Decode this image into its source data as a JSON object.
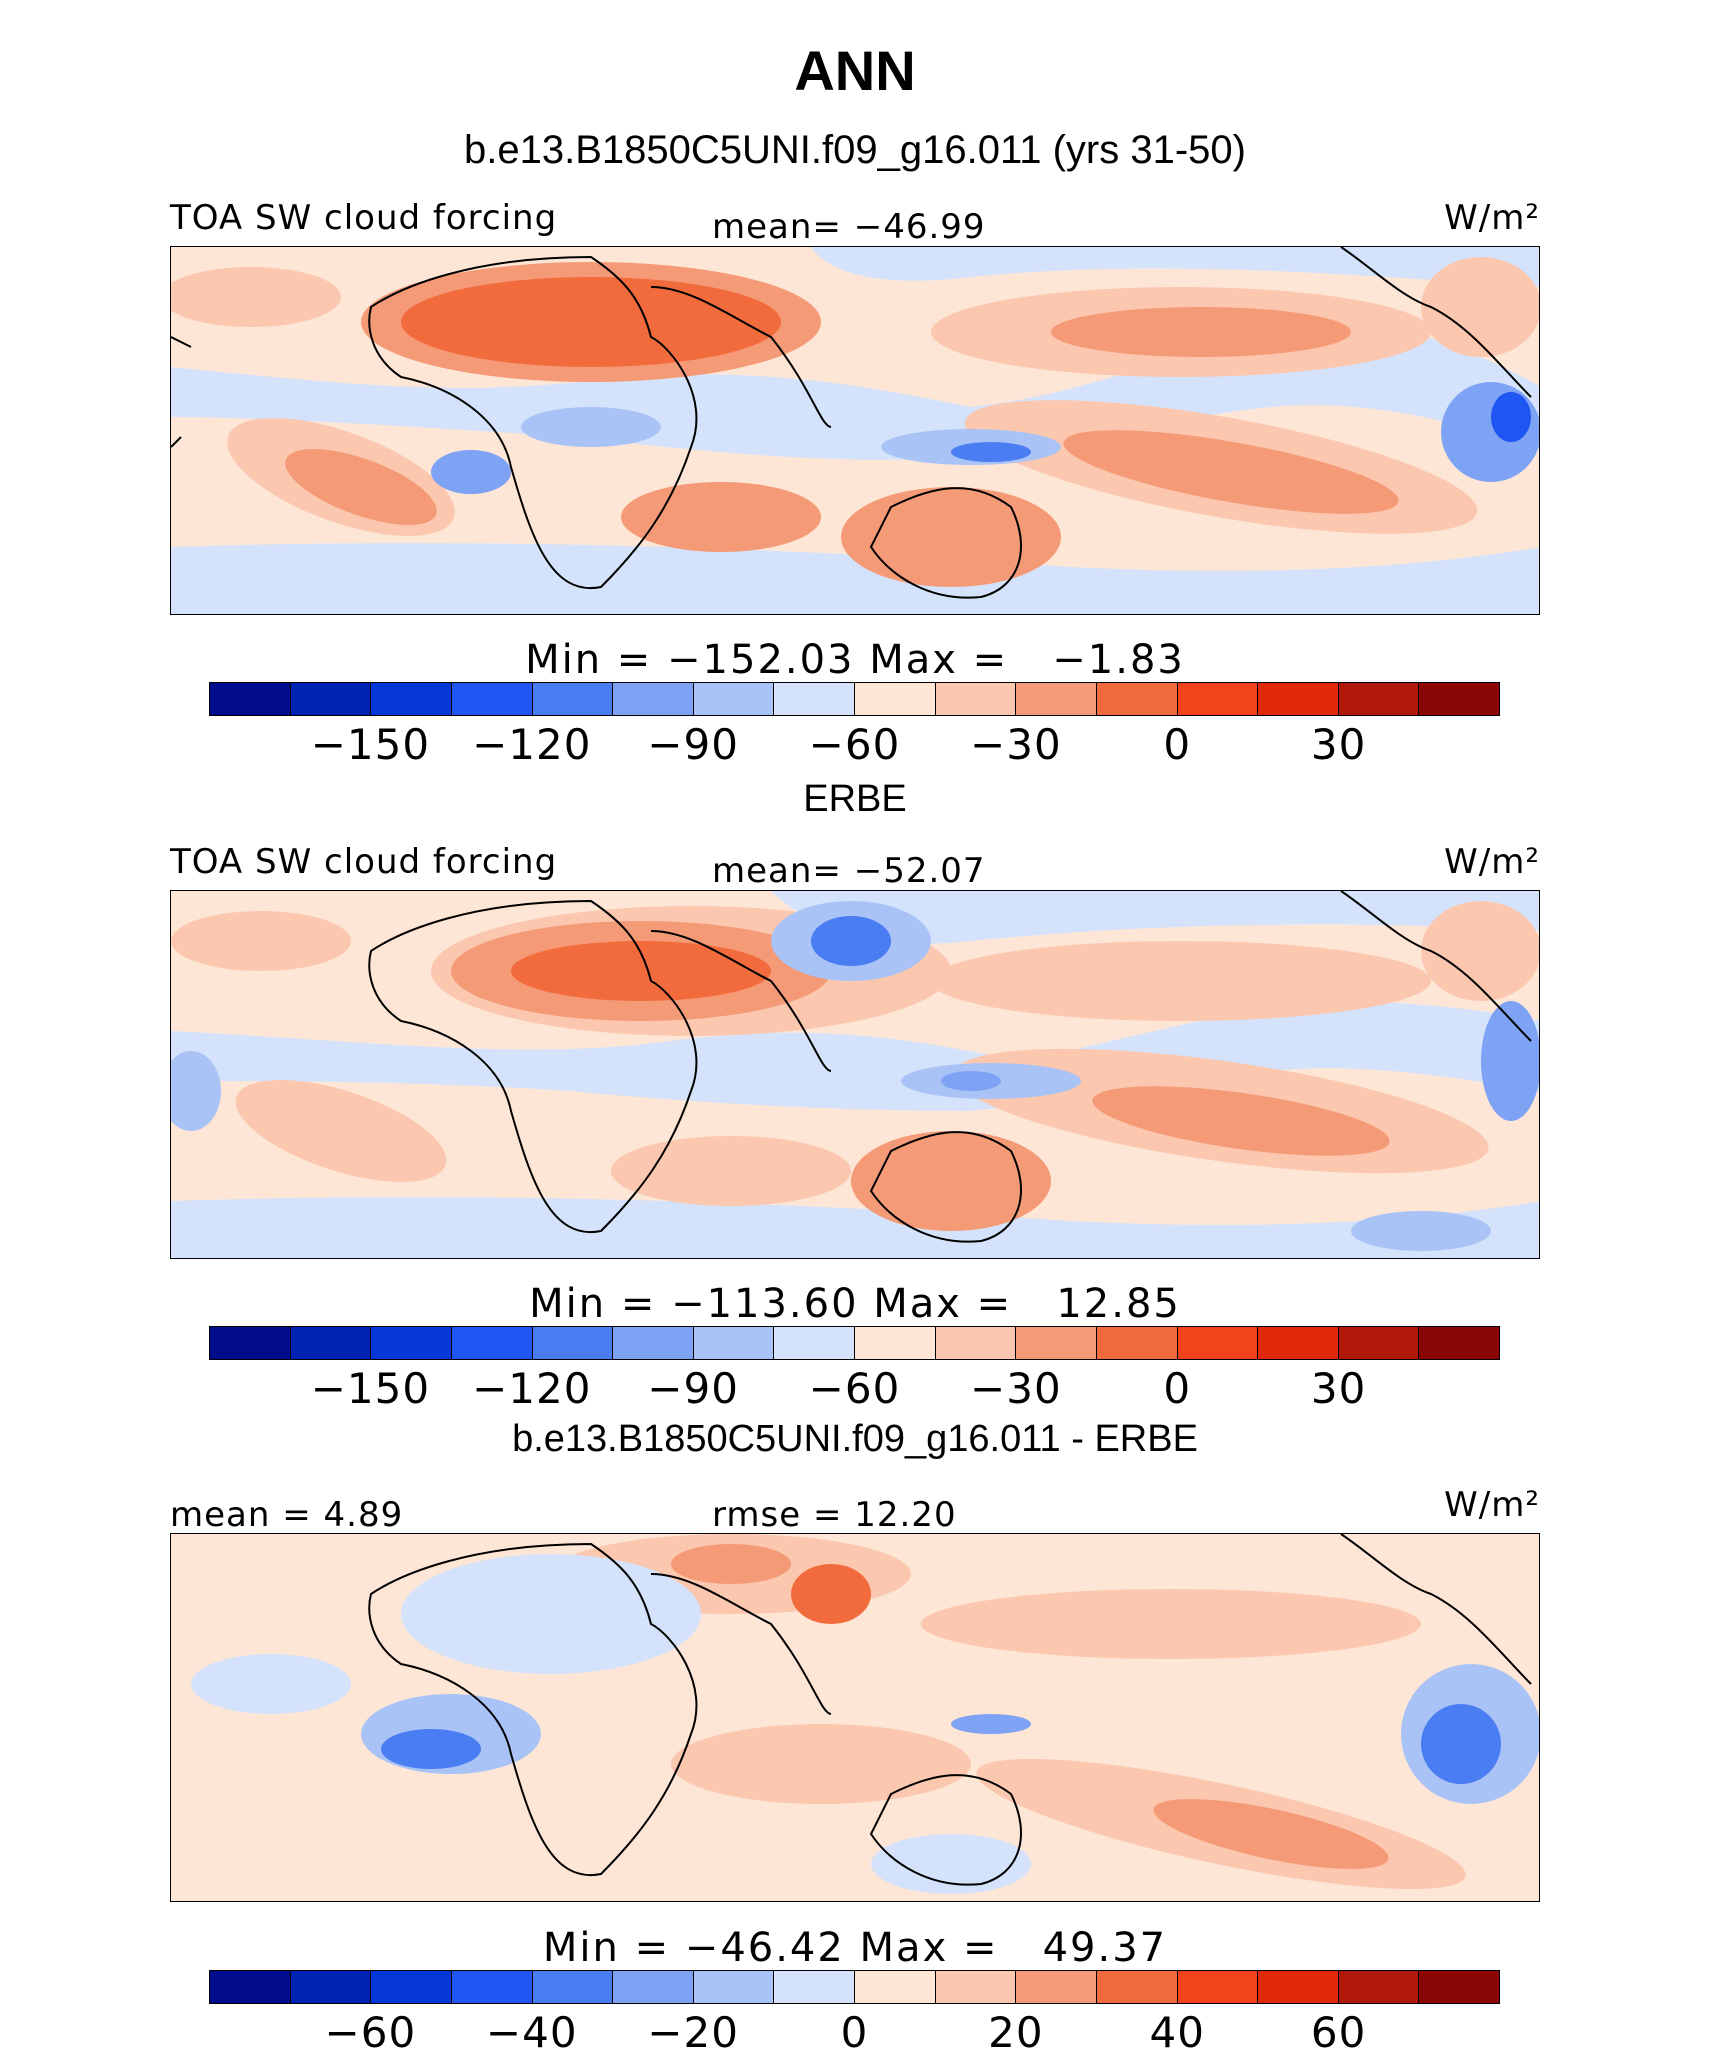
{
  "header": {
    "title": "ANN",
    "case_title": "b.e13.B1850C5UNI.f09_g16.011 (yrs 31-50)"
  },
  "panels": [
    {
      "left_label": "TOA SW cloud forcing",
      "center_label": "mean= −46.99",
      "units": "W/m²",
      "min_max": "Min = −152.03 Max =   −1.83",
      "colorbar_ticks": [
        "−150",
        "−120",
        "−90",
        "−60",
        "−30",
        "0",
        "30"
      ]
    },
    {
      "section_title": "ERBE",
      "left_label": "TOA SW cloud forcing",
      "center_label": "mean= −52.07",
      "units": "W/m²",
      "min_max": "Min = −113.60 Max =   12.85",
      "colorbar_ticks": [
        "−150",
        "−120",
        "−90",
        "−60",
        "−30",
        "0",
        "30"
      ]
    },
    {
      "section_title": "b.e13.B1850C5UNI.f09_g16.011 - ERBE",
      "left_label": "mean =   4.89",
      "center_label": "rmse =  12.20",
      "units": "W/m²",
      "min_max": "Min = −46.42 Max =   49.37",
      "colorbar_ticks": [
        "−60",
        "−40",
        "−20",
        "0",
        "20",
        "40",
        "60"
      ]
    }
  ],
  "colorbar_colors": [
    "#000c8c",
    "#0023b4",
    "#0538d6",
    "#1f55f0",
    "#4a7cf2",
    "#7fa3f4",
    "#a9c3f7",
    "#d4e3fb",
    "#fde6d6",
    "#fbc7ae",
    "#f59a77",
    "#f26b3c",
    "#f2431c",
    "#e02a0a",
    "#b0180a",
    "#8a0606"
  ]
}
